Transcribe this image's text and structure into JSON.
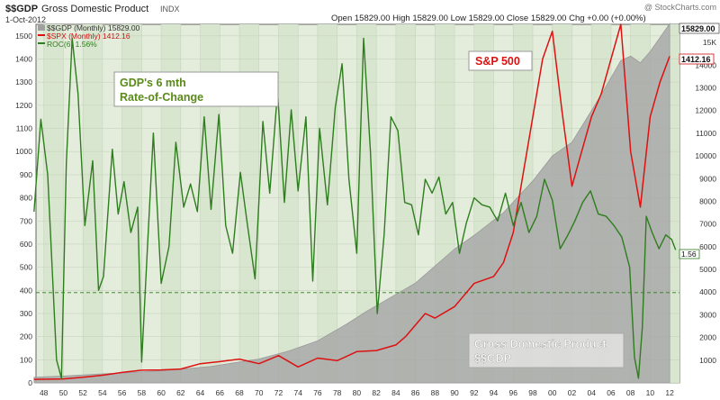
{
  "header": {
    "symbol": "$$GDP",
    "name": "Gross Domestic Product",
    "exchange": "INDX",
    "date": "1-Oct-2012",
    "ohlc": "Open 15829.00  High 15829.00  Low 15829.00  Close 15829.00  Chg +0.00 (+0.00%)",
    "watermark": "@ StockCharts.com"
  },
  "legend": [
    {
      "text": "$$GDP (Monthly) 15829.00",
      "color": "#a0a0a0"
    },
    {
      "text": "$SPX (Monthly) 1412.16",
      "color": "#dd1111"
    },
    {
      "text": "ROC(6) 1.56%",
      "color": "#2e7d1e"
    }
  ],
  "annotations": {
    "roc_box": [
      "GDP's 6 mth",
      "Rate-of-Change"
    ],
    "spx_box": "S&P 500",
    "gdp_box": [
      "Gross Domestic Product",
      "$$GDP"
    ]
  },
  "last_values": {
    "gdp": "15829.00",
    "spx": "1412.16",
    "roc": "1.56"
  },
  "colors": {
    "plot_bg": "#e4eddc",
    "gdp_area": "#a8a8a8",
    "spx_line": "#dd1111",
    "roc_line": "#2e7d1e"
  },
  "chart_data": {
    "type": "line",
    "x_ticks": [
      "48",
      "50",
      "52",
      "54",
      "56",
      "58",
      "60",
      "62",
      "64",
      "66",
      "68",
      "70",
      "72",
      "74",
      "76",
      "78",
      "80",
      "82",
      "84",
      "86",
      "88",
      "90",
      "92",
      "94",
      "96",
      "98",
      "00",
      "02",
      "04",
      "06",
      "08",
      "10",
      "12"
    ],
    "left_axis": {
      "ticks": [
        0,
        100,
        200,
        300,
        400,
        500,
        600,
        700,
        800,
        900,
        1000,
        1100,
        1200,
        1300,
        1400,
        1500
      ],
      "ylim": [
        0,
        1550
      ],
      "series": "$SPX / ROC(6)"
    },
    "right_axis": {
      "ticks": [
        "1000",
        "2000",
        "3000",
        "4000",
        "5000",
        "6000",
        "7000",
        "8000",
        "9000",
        "10000",
        "11000",
        "12000",
        "13000",
        "14000",
        "15K"
      ],
      "ylim": [
        0,
        15800
      ],
      "series": "$$GDP"
    },
    "roc_reference_level": 390,
    "series": [
      {
        "name": "$$GDP",
        "style": "area",
        "points": [
          [
            1947,
            250
          ],
          [
            1950,
            300
          ],
          [
            1955,
            420
          ],
          [
            1960,
            530
          ],
          [
            1965,
            720
          ],
          [
            1970,
            1050
          ],
          [
            1973,
            1400
          ],
          [
            1976,
            1850
          ],
          [
            1979,
            2600
          ],
          [
            1981,
            3150
          ],
          [
            1983,
            3650
          ],
          [
            1986,
            4400
          ],
          [
            1990,
            5900
          ],
          [
            1992,
            6500
          ],
          [
            1995,
            7500
          ],
          [
            1998,
            8900
          ],
          [
            2000,
            10000
          ],
          [
            2002,
            10600
          ],
          [
            2005,
            12700
          ],
          [
            2007,
            14200
          ],
          [
            2008,
            14400
          ],
          [
            2009,
            14100
          ],
          [
            2010,
            14600
          ],
          [
            2012,
            15829
          ]
        ]
      },
      {
        "name": "$SPX",
        "style": "line",
        "points": [
          [
            1947,
            15
          ],
          [
            1950,
            17
          ],
          [
            1952,
            24
          ],
          [
            1954,
            33
          ],
          [
            1956,
            45
          ],
          [
            1958,
            55
          ],
          [
            1960,
            56
          ],
          [
            1962,
            60
          ],
          [
            1964,
            83
          ],
          [
            1966,
            92
          ],
          [
            1968,
            103
          ],
          [
            1970,
            83
          ],
          [
            1972,
            118
          ],
          [
            1974,
            69
          ],
          [
            1976,
            107
          ],
          [
            1978,
            96
          ],
          [
            1980,
            135
          ],
          [
            1982,
            140
          ],
          [
            1984,
            164
          ],
          [
            1985,
            200
          ],
          [
            1987,
            300
          ],
          [
            1988,
            280
          ],
          [
            1990,
            330
          ],
          [
            1992,
            430
          ],
          [
            1994,
            460
          ],
          [
            1995,
            520
          ],
          [
            1996,
            650
          ],
          [
            1997,
            900
          ],
          [
            1998,
            1150
          ],
          [
            1999,
            1400
          ],
          [
            2000,
            1520
          ],
          [
            2001,
            1170
          ],
          [
            2002,
            850
          ],
          [
            2003,
            1000
          ],
          [
            2004,
            1150
          ],
          [
            2005,
            1250
          ],
          [
            2006,
            1400
          ],
          [
            2007,
            1550
          ],
          [
            2008,
            1000
          ],
          [
            2009,
            760
          ],
          [
            2010,
            1150
          ],
          [
            2011,
            1300
          ],
          [
            2012,
            1412
          ]
        ]
      },
      {
        "name": "ROC(6)",
        "style": "line",
        "points": [
          [
            1947,
            740
          ],
          [
            1947.7,
            1140
          ],
          [
            1948.4,
            900
          ],
          [
            1949.3,
            100
          ],
          [
            1949.8,
            20
          ],
          [
            1950.3,
            950
          ],
          [
            1950.9,
            1490
          ],
          [
            1951.5,
            1250
          ],
          [
            1952.2,
            680
          ],
          [
            1953,
            960
          ],
          [
            1953.6,
            400
          ],
          [
            1954.1,
            460
          ],
          [
            1955,
            1010
          ],
          [
            1955.6,
            730
          ],
          [
            1956.2,
            870
          ],
          [
            1956.9,
            650
          ],
          [
            1957.6,
            760
          ],
          [
            1958,
            90
          ],
          [
            1958.6,
            590
          ],
          [
            1959.2,
            1080
          ],
          [
            1960,
            430
          ],
          [
            1960.8,
            590
          ],
          [
            1961.5,
            1040
          ],
          [
            1962.3,
            760
          ],
          [
            1963,
            860
          ],
          [
            1963.7,
            740
          ],
          [
            1964.4,
            1150
          ],
          [
            1965.1,
            750
          ],
          [
            1965.9,
            1160
          ],
          [
            1966.6,
            680
          ],
          [
            1967.3,
            560
          ],
          [
            1968.1,
            910
          ],
          [
            1968.8,
            690
          ],
          [
            1969.6,
            450
          ],
          [
            1970.4,
            1130
          ],
          [
            1971.1,
            820
          ],
          [
            1971.9,
            1260
          ],
          [
            1972.6,
            780
          ],
          [
            1973.3,
            1180
          ],
          [
            1974,
            830
          ],
          [
            1974.8,
            1150
          ],
          [
            1975.5,
            440
          ],
          [
            1976.2,
            1100
          ],
          [
            1977,
            770
          ],
          [
            1977.8,
            1190
          ],
          [
            1978.5,
            1380
          ],
          [
            1979.2,
            880
          ],
          [
            1980,
            560
          ],
          [
            1980.7,
            1490
          ],
          [
            1981.4,
            1000
          ],
          [
            1982.1,
            300
          ],
          [
            1982.8,
            640
          ],
          [
            1983.5,
            1150
          ],
          [
            1984.2,
            1090
          ],
          [
            1984.9,
            780
          ],
          [
            1985.6,
            770
          ],
          [
            1986.3,
            640
          ],
          [
            1987,
            880
          ],
          [
            1987.7,
            820
          ],
          [
            1988.4,
            890
          ],
          [
            1989.1,
            730
          ],
          [
            1989.8,
            780
          ],
          [
            1990.5,
            560
          ],
          [
            1991.2,
            690
          ],
          [
            1992,
            800
          ],
          [
            1992.8,
            770
          ],
          [
            1993.6,
            760
          ],
          [
            1994.4,
            700
          ],
          [
            1995.2,
            820
          ],
          [
            1996,
            680
          ],
          [
            1996.8,
            780
          ],
          [
            1997.6,
            650
          ],
          [
            1998.4,
            720
          ],
          [
            1999.2,
            880
          ],
          [
            2000,
            790
          ],
          [
            2000.8,
            580
          ],
          [
            2001.6,
            640
          ],
          [
            2002.3,
            700
          ],
          [
            2003.1,
            780
          ],
          [
            2003.9,
            830
          ],
          [
            2004.7,
            730
          ],
          [
            2005.5,
            720
          ],
          [
            2006.3,
            680
          ],
          [
            2007.1,
            630
          ],
          [
            2007.9,
            500
          ],
          [
            2008.4,
            110
          ],
          [
            2008.8,
            20
          ],
          [
            2009.2,
            240
          ],
          [
            2009.6,
            720
          ],
          [
            2010.2,
            650
          ],
          [
            2010.9,
            580
          ],
          [
            2011.6,
            640
          ],
          [
            2012.2,
            620
          ],
          [
            2012.6,
            575
          ]
        ]
      }
    ]
  }
}
